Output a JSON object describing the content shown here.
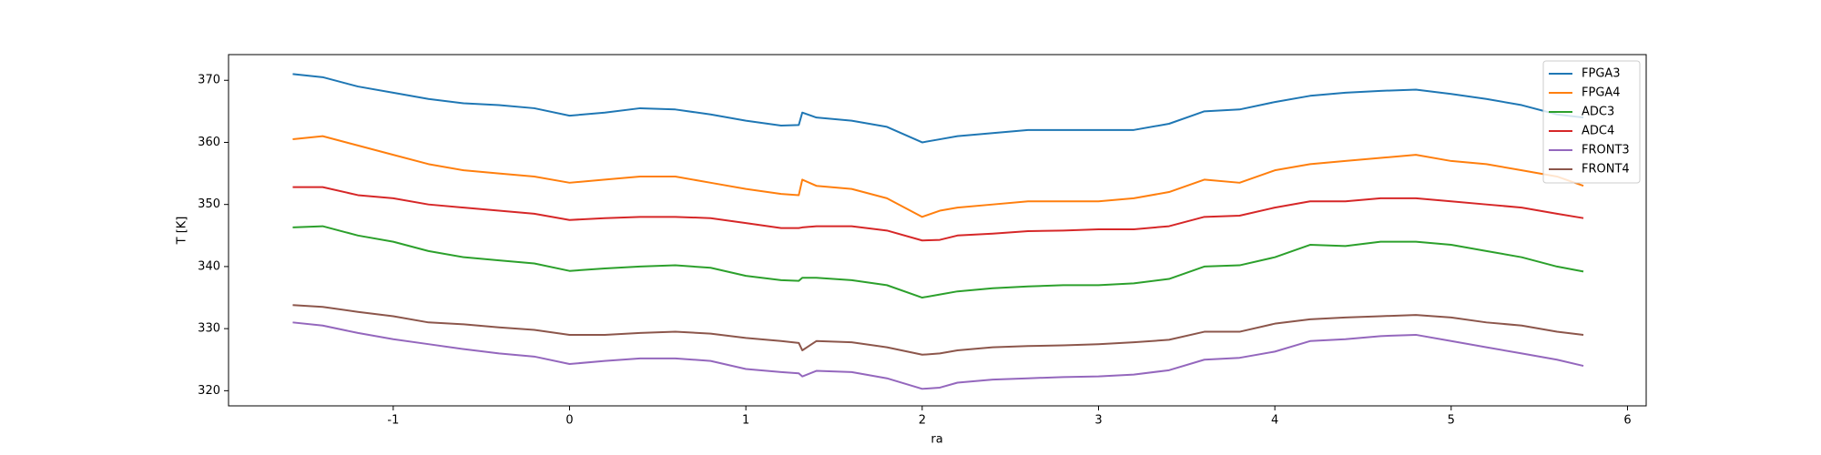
{
  "chart_data": {
    "type": "line",
    "xlabel": "ra",
    "ylabel": "T [K]",
    "x": [
      -1.57,
      -1.4,
      -1.2,
      -1.0,
      -0.8,
      -0.6,
      -0.4,
      -0.2,
      0,
      0.2,
      0.4,
      0.6,
      0.8,
      1.0,
      1.2,
      1.3,
      1.32,
      1.4,
      1.6,
      1.8,
      2.0,
      2.1,
      2.2,
      2.4,
      2.6,
      2.8,
      3.0,
      3.2,
      3.4,
      3.6,
      3.8,
      4.0,
      4.2,
      4.4,
      4.6,
      4.8,
      5.0,
      5.2,
      5.4,
      5.6,
      5.75
    ],
    "series": [
      {
        "name": "FPGA3",
        "color": "#1f77b4",
        "values": [
          371,
          370.5,
          369,
          368,
          367,
          366.3,
          366,
          365.5,
          364.3,
          364.8,
          365.5,
          365.3,
          364.5,
          363.5,
          362.7,
          362.8,
          364.8,
          364,
          363.5,
          362.5,
          360,
          360.5,
          361,
          361.5,
          362,
          362,
          362,
          362,
          363,
          365,
          365.3,
          366.5,
          367.5,
          368,
          368.3,
          368.5,
          367.8,
          367,
          366,
          364.5,
          364
        ]
      },
      {
        "name": "FPGA4",
        "color": "#ff7f0e",
        "values": [
          360.5,
          361,
          359.5,
          358,
          356.5,
          355.5,
          355,
          354.5,
          353.5,
          354,
          354.5,
          354.5,
          353.5,
          352.5,
          351.7,
          351.5,
          354,
          353,
          352.5,
          351,
          348,
          349,
          349.5,
          350,
          350.5,
          350.5,
          350.5,
          351,
          352,
          354,
          353.5,
          355.5,
          356.5,
          357,
          357.5,
          358,
          357,
          356.5,
          355.5,
          354.5,
          353
        ]
      },
      {
        "name": "ADC3",
        "color": "#2ca02c",
        "values": [
          346.3,
          346.5,
          345,
          344,
          342.5,
          341.5,
          341,
          340.5,
          339.3,
          339.7,
          340,
          340.2,
          339.8,
          338.5,
          337.8,
          337.7,
          338.2,
          338.2,
          337.8,
          337,
          335,
          335.5,
          336,
          336.5,
          336.8,
          337,
          337,
          337.3,
          338,
          340,
          340.2,
          341.5,
          343.5,
          343.3,
          344,
          344,
          343.5,
          342.5,
          341.5,
          340,
          339.2
        ]
      },
      {
        "name": "ADC4",
        "color": "#d62728",
        "values": [
          352.8,
          352.8,
          351.5,
          351,
          350,
          349.5,
          349,
          348.5,
          347.5,
          347.8,
          348,
          348,
          347.8,
          347,
          346.2,
          346.2,
          346.3,
          346.5,
          346.5,
          345.8,
          344.2,
          344.3,
          345,
          345.3,
          345.7,
          345.8,
          346,
          346,
          346.5,
          348,
          348.2,
          349.5,
          350.5,
          350.5,
          351,
          351,
          350.5,
          350,
          349.5,
          348.5,
          347.8
        ]
      },
      {
        "name": "FRONT3",
        "color": "#9467bd",
        "values": [
          331,
          330.5,
          329.3,
          328.3,
          327.5,
          326.7,
          326,
          325.5,
          324.3,
          324.8,
          325.2,
          325.2,
          324.8,
          323.5,
          323,
          322.8,
          322.3,
          323.2,
          323,
          322,
          320.3,
          320.5,
          321.3,
          321.8,
          322,
          322.2,
          322.3,
          322.6,
          323.3,
          325,
          325.3,
          326.3,
          328,
          328.3,
          328.8,
          329,
          328,
          327,
          326,
          325,
          324
        ]
      },
      {
        "name": "FRONT4",
        "color": "#8c564b",
        "values": [
          333.8,
          333.5,
          332.7,
          332,
          331,
          330.7,
          330.2,
          329.8,
          329,
          329,
          329.3,
          329.5,
          329.2,
          328.5,
          328,
          327.7,
          326.5,
          328,
          327.8,
          327,
          325.8,
          326,
          326.5,
          327,
          327.2,
          327.3,
          327.5,
          327.8,
          328.2,
          329.5,
          329.5,
          330.8,
          331.5,
          331.8,
          332,
          332.2,
          331.8,
          331,
          330.5,
          329.5,
          329
        ]
      }
    ],
    "xlim": [
      -1.934,
      6.106
    ],
    "ylim": [
      317.56,
      374.14
    ],
    "xticks": [
      -1,
      0,
      1,
      2,
      3,
      4,
      5,
      6
    ],
    "yticks": [
      320,
      330,
      340,
      350,
      360,
      370
    ],
    "legend": "upper right"
  }
}
